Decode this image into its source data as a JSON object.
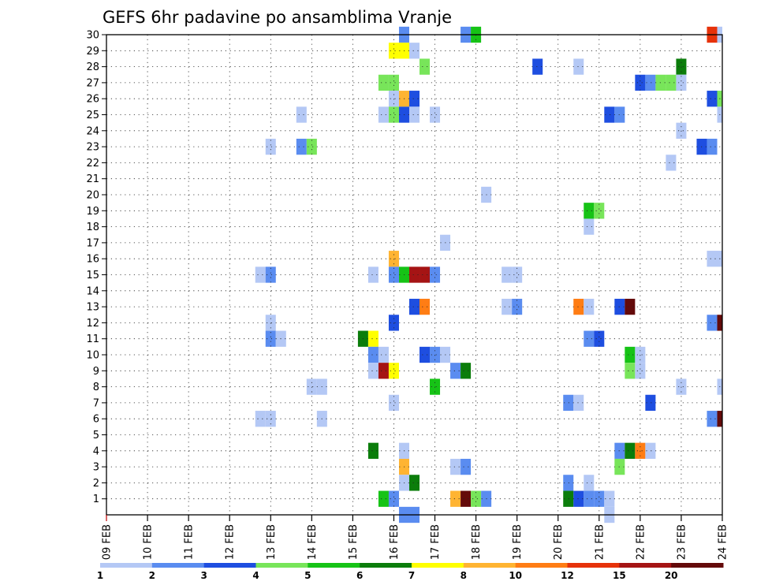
{
  "chart_data": {
    "type": "heatmap",
    "title": "GEFS 6hr padavine po ansamblima Vranje",
    "x_dates": [
      "09 FEB",
      "10 FEB",
      "11 FEB",
      "12 FEB",
      "13 FEB",
      "14 FEB",
      "15 FEB",
      "16 FEB",
      "17 FEB",
      "18 FEB",
      "19 FEB",
      "20 FEB",
      "21 FEB",
      "22 FEB",
      "23 FEB",
      "24 FEB"
    ],
    "y_ticks": [
      1,
      2,
      3,
      4,
      5,
      6,
      7,
      8,
      9,
      10,
      11,
      12,
      13,
      14,
      15,
      16,
      17,
      18,
      19,
      20,
      21,
      22,
      23,
      24,
      25,
      26,
      27,
      28,
      29,
      30
    ],
    "xlim": [
      "09 FEB",
      "24 FEB"
    ],
    "ylim": [
      0,
      30
    ],
    "grid": true,
    "colorbar": {
      "boundaries": [
        1,
        2,
        3,
        4,
        5,
        6,
        7,
        8,
        10,
        12,
        15,
        20
      ],
      "labels": [
        "1",
        "2",
        "3",
        "4",
        "5",
        "6",
        "7",
        "8",
        "10",
        "12",
        "15",
        "20"
      ],
      "colors": [
        "#b4c8f5",
        "#5a8cf0",
        "#1e4ee0",
        "#78e55a",
        "#16c316",
        "#0b7d0b",
        "#ffff00",
        "#ffb432",
        "#ff7d14",
        "#e6320a",
        "#a51414",
        "#640a0a"
      ]
    },
    "cells": [
      {
        "y": 30,
        "d": 16.25,
        "c": 2
      },
      {
        "y": 30,
        "d": 17.75,
        "c": 2
      },
      {
        "y": 30,
        "d": 18,
        "c": 5
      },
      {
        "y": 30,
        "d": 23.75,
        "c": 10
      },
      {
        "y": 30,
        "d": 24,
        "c": 1
      },
      {
        "y": 29,
        "d": 16,
        "c": 7
      },
      {
        "y": 29,
        "d": 16.25,
        "c": 7
      },
      {
        "y": 29,
        "d": 16.5,
        "c": 1
      },
      {
        "y": 28,
        "d": 16.75,
        "c": 4
      },
      {
        "y": 28,
        "d": 19.5,
        "c": 3
      },
      {
        "y": 28,
        "d": 20.5,
        "c": 1
      },
      {
        "y": 28,
        "d": 23,
        "c": 6
      },
      {
        "y": 27,
        "d": 15.75,
        "c": 4
      },
      {
        "y": 27,
        "d": 16,
        "c": 4
      },
      {
        "y": 27,
        "d": 22,
        "c": 3
      },
      {
        "y": 27,
        "d": 22.25,
        "c": 2
      },
      {
        "y": 27,
        "d": 22.5,
        "c": 4
      },
      {
        "y": 27,
        "d": 22.75,
        "c": 4
      },
      {
        "y": 27,
        "d": 23,
        "c": 1
      },
      {
        "y": 26,
        "d": 16,
        "c": 1
      },
      {
        "y": 26,
        "d": 16.25,
        "c": 8
      },
      {
        "y": 26,
        "d": 16.5,
        "c": 3
      },
      {
        "y": 26,
        "d": 23.75,
        "c": 3
      },
      {
        "y": 26,
        "d": 24,
        "c": 4
      },
      {
        "y": 25,
        "d": 13.75,
        "c": 1
      },
      {
        "y": 25,
        "d": 15.75,
        "c": 1
      },
      {
        "y": 25,
        "d": 16,
        "c": 4
      },
      {
        "y": 25,
        "d": 16.25,
        "c": 3
      },
      {
        "y": 25,
        "d": 16.5,
        "c": 1
      },
      {
        "y": 25,
        "d": 17,
        "c": 1
      },
      {
        "y": 25,
        "d": 21.25,
        "c": 3
      },
      {
        "y": 25,
        "d": 21.5,
        "c": 2
      },
      {
        "y": 25,
        "d": 24,
        "c": 1
      },
      {
        "y": 24,
        "d": 23,
        "c": 1
      },
      {
        "y": 23,
        "d": 13,
        "c": 1
      },
      {
        "y": 23,
        "d": 13.75,
        "c": 2
      },
      {
        "y": 23,
        "d": 14,
        "c": 4
      },
      {
        "y": 23,
        "d": 23.5,
        "c": 3
      },
      {
        "y": 23,
        "d": 23.75,
        "c": 2
      },
      {
        "y": 22,
        "d": 22.75,
        "c": 1
      },
      {
        "y": 20,
        "d": 18.25,
        "c": 1
      },
      {
        "y": 19,
        "d": 20.75,
        "c": 5
      },
      {
        "y": 19,
        "d": 21,
        "c": 4
      },
      {
        "y": 18,
        "d": 20.75,
        "c": 1
      },
      {
        "y": 17,
        "d": 17.25,
        "c": 1
      },
      {
        "y": 16,
        "d": 16,
        "c": 8
      },
      {
        "y": 16,
        "d": 23.75,
        "c": 1
      },
      {
        "y": 16,
        "d": 24,
        "c": 1
      },
      {
        "y": 15,
        "d": 12.75,
        "c": 1
      },
      {
        "y": 15,
        "d": 13,
        "c": 2
      },
      {
        "y": 15,
        "d": 15.5,
        "c": 1
      },
      {
        "y": 15,
        "d": 16,
        "c": 2
      },
      {
        "y": 15,
        "d": 16.25,
        "c": 5
      },
      {
        "y": 15,
        "d": 16.5,
        "c": 11
      },
      {
        "y": 15,
        "d": 16.75,
        "c": 11
      },
      {
        "y": 15,
        "d": 17,
        "c": 2
      },
      {
        "y": 15,
        "d": 18.75,
        "c": 1
      },
      {
        "y": 15,
        "d": 19,
        "c": 1
      },
      {
        "y": 13,
        "d": 16.5,
        "c": 3
      },
      {
        "y": 13,
        "d": 16.75,
        "c": 9
      },
      {
        "y": 13,
        "d": 18.75,
        "c": 1
      },
      {
        "y": 13,
        "d": 19,
        "c": 2
      },
      {
        "y": 13,
        "d": 20.5,
        "c": 9
      },
      {
        "y": 13,
        "d": 20.75,
        "c": 1
      },
      {
        "y": 13,
        "d": 21.5,
        "c": 3
      },
      {
        "y": 13,
        "d": 21.75,
        "c": 12
      },
      {
        "y": 12,
        "d": 13,
        "c": 1
      },
      {
        "y": 12,
        "d": 16,
        "c": 3
      },
      {
        "y": 12,
        "d": 23.75,
        "c": 2
      },
      {
        "y": 12,
        "d": 24,
        "c": 12
      },
      {
        "y": 11,
        "d": 13,
        "c": 2
      },
      {
        "y": 11,
        "d": 13.25,
        "c": 1
      },
      {
        "y": 11,
        "d": 15.25,
        "c": 6
      },
      {
        "y": 11,
        "d": 15.5,
        "c": 7
      },
      {
        "y": 11,
        "d": 20.75,
        "c": 2
      },
      {
        "y": 11,
        "d": 21,
        "c": 3
      },
      {
        "y": 10,
        "d": 15.5,
        "c": 2
      },
      {
        "y": 10,
        "d": 15.75,
        "c": 1
      },
      {
        "y": 10,
        "d": 16.75,
        "c": 3
      },
      {
        "y": 10,
        "d": 17,
        "c": 2
      },
      {
        "y": 10,
        "d": 17.25,
        "c": 1
      },
      {
        "y": 10,
        "d": 21.75,
        "c": 5
      },
      {
        "y": 10,
        "d": 22,
        "c": 1
      },
      {
        "y": 9,
        "d": 15.5,
        "c": 1
      },
      {
        "y": 9,
        "d": 15.75,
        "c": 11
      },
      {
        "y": 9,
        "d": 16,
        "c": 7
      },
      {
        "y": 9,
        "d": 17.5,
        "c": 2
      },
      {
        "y": 9,
        "d": 17.75,
        "c": 6
      },
      {
        "y": 9,
        "d": 21.75,
        "c": 4
      },
      {
        "y": 9,
        "d": 22,
        "c": 1
      },
      {
        "y": 8,
        "d": 14,
        "c": 1
      },
      {
        "y": 8,
        "d": 14.25,
        "c": 1
      },
      {
        "y": 8,
        "d": 17,
        "c": 5
      },
      {
        "y": 8,
        "d": 23,
        "c": 1
      },
      {
        "y": 8,
        "d": 24,
        "c": 1
      },
      {
        "y": 7,
        "d": 16,
        "c": 1
      },
      {
        "y": 7,
        "d": 20.25,
        "c": 2
      },
      {
        "y": 7,
        "d": 20.5,
        "c": 1
      },
      {
        "y": 7,
        "d": 22.25,
        "c": 3
      },
      {
        "y": 6,
        "d": 12.75,
        "c": 1
      },
      {
        "y": 6,
        "d": 13,
        "c": 1
      },
      {
        "y": 6,
        "d": 14.25,
        "c": 1
      },
      {
        "y": 6,
        "d": 23.75,
        "c": 2
      },
      {
        "y": 6,
        "d": 24,
        "c": 12
      },
      {
        "y": 4,
        "d": 15.5,
        "c": 6
      },
      {
        "y": 4,
        "d": 16.25,
        "c": 1
      },
      {
        "y": 4,
        "d": 21.5,
        "c": 2
      },
      {
        "y": 4,
        "d": 21.75,
        "c": 6
      },
      {
        "y": 4,
        "d": 22,
        "c": 9
      },
      {
        "y": 4,
        "d": 22.25,
        "c": 1
      },
      {
        "y": 3,
        "d": 16.25,
        "c": 8
      },
      {
        "y": 3,
        "d": 17.5,
        "c": 1
      },
      {
        "y": 3,
        "d": 17.75,
        "c": 2
      },
      {
        "y": 3,
        "d": 21.5,
        "c": 4
      },
      {
        "y": 2,
        "d": 16.25,
        "c": 1
      },
      {
        "y": 2,
        "d": 16.5,
        "c": 6
      },
      {
        "y": 2,
        "d": 20.25,
        "c": 2
      },
      {
        "y": 2,
        "d": 20.75,
        "c": 1
      },
      {
        "y": 1,
        "d": 15.75,
        "c": 5
      },
      {
        "y": 1,
        "d": 16,
        "c": 2
      },
      {
        "y": 1,
        "d": 17.5,
        "c": 8
      },
      {
        "y": 1,
        "d": 17.75,
        "c": 12
      },
      {
        "y": 1,
        "d": 18,
        "c": 4
      },
      {
        "y": 1,
        "d": 18.25,
        "c": 2
      },
      {
        "y": 1,
        "d": 20.25,
        "c": 6
      },
      {
        "y": 1,
        "d": 20.5,
        "c": 3
      },
      {
        "y": 1,
        "d": 20.75,
        "c": 2
      },
      {
        "y": 1,
        "d": 21,
        "c": 2
      },
      {
        "y": 1,
        "d": 21.25,
        "c": 1
      },
      {
        "y": 0,
        "d": 16.25,
        "c": 2
      },
      {
        "y": 0,
        "d": 16.5,
        "c": 2
      },
      {
        "y": 0,
        "d": 21.25,
        "c": 1
      }
    ]
  }
}
